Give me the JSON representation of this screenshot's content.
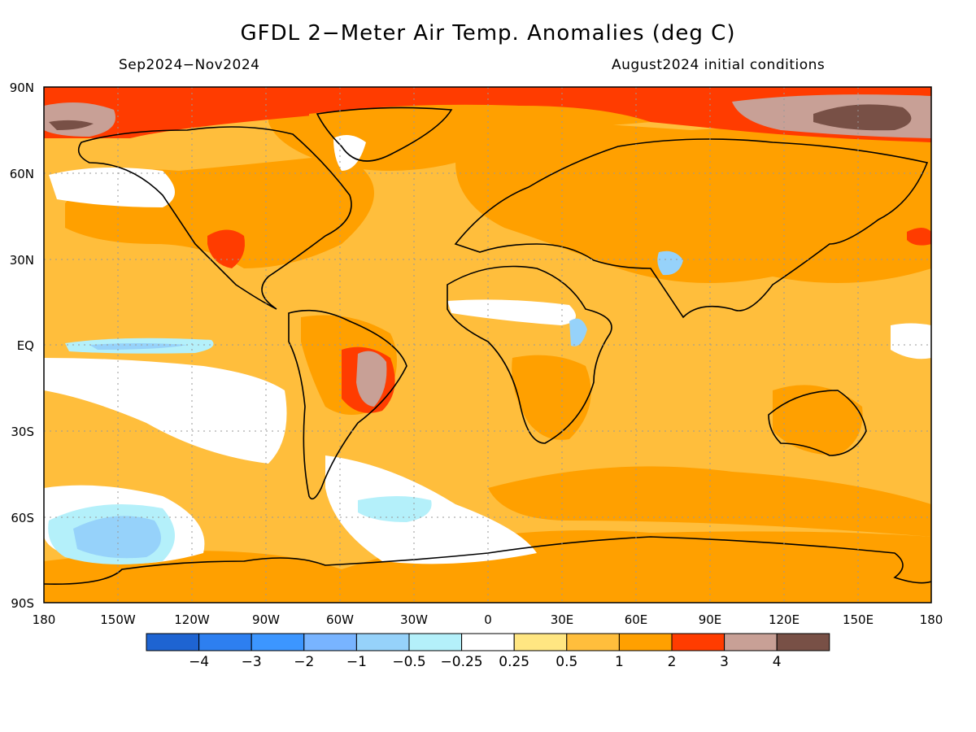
{
  "header": {
    "title": "GFDL 2−Meter Air Temp. Anomalies (deg C)",
    "period": "Sep2024−Nov2024",
    "init": "August2024 initial conditions"
  },
  "axes": {
    "lat_ticks": [
      "90N",
      "60N",
      "30N",
      "EQ",
      "30S",
      "60S",
      "90S"
    ],
    "lon_ticks": [
      "180",
      "150W",
      "120W",
      "90W",
      "60W",
      "30W",
      "0",
      "30E",
      "60E",
      "90E",
      "120E",
      "150E",
      "180"
    ]
  },
  "colorbar": {
    "colors": [
      "#1e64d2",
      "#2d7ff0",
      "#3c96ff",
      "#78b4ff",
      "#96d2fa",
      "#b4f0fa",
      "#ffffff",
      "#ffe682",
      "#ffbe3c",
      "#ffa000",
      "#ff3c00",
      "#c8a096",
      "#785046"
    ],
    "labels": [
      "−4",
      "−3",
      "−2",
      "−1",
      "−0.5",
      "−0.25",
      "0.25",
      "0.5",
      "1",
      "2",
      "3",
      "4"
    ]
  }
}
